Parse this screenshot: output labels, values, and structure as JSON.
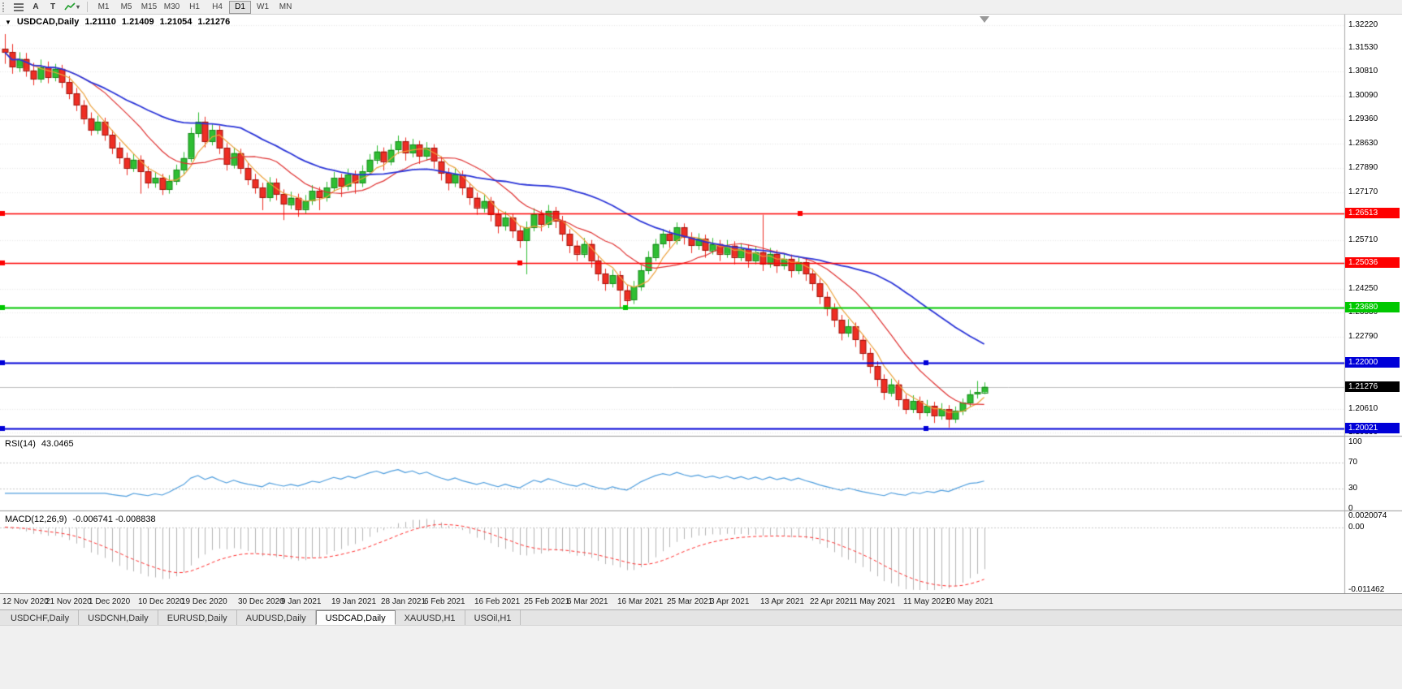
{
  "toolbar": {
    "icons": [
      {
        "name": "chart-list-icon",
        "glyph": ""
      },
      {
        "name": "autoscroll-icon",
        "glyph": "A"
      },
      {
        "name": "text-label-icon",
        "glyph": "T"
      },
      {
        "name": "indicators-icon",
        "glyph": "",
        "caret": "▾"
      }
    ],
    "timeframes": [
      "M1",
      "M5",
      "M15",
      "M30",
      "H1",
      "H4",
      "D1",
      "W1",
      "MN"
    ],
    "active_timeframe": "D1"
  },
  "chart": {
    "menu_arrow": "▼",
    "title": "USDCAD,Daily",
    "ohlc": {
      "open": "1.21110",
      "high": "1.21409",
      "low": "1.21054",
      "close": "1.21276"
    },
    "scale_labels": [
      {
        "text": "1.32220",
        "price": 1.3222
      },
      {
        "text": "1.31530",
        "price": 1.3153
      },
      {
        "text": "1.30810",
        "price": 1.3081
      },
      {
        "text": "1.30090",
        "price": 1.3009
      },
      {
        "text": "1.29360",
        "price": 1.2936
      },
      {
        "text": "1.28630",
        "price": 1.2863
      },
      {
        "text": "1.27890",
        "price": 1.2789
      },
      {
        "text": "1.27170",
        "price": 1.2717
      },
      {
        "text": "1.25710",
        "price": 1.2571
      },
      {
        "text": "1.24250",
        "price": 1.2425
      },
      {
        "text": "1.23530",
        "price": 1.2353
      },
      {
        "text": "1.22790",
        "price": 1.2279
      },
      {
        "text": "1.20610",
        "price": 1.2061
      },
      {
        "text": "1.19890",
        "price": 1.1989
      }
    ],
    "badges": [
      {
        "text": "1.26513",
        "price": 1.26513,
        "color": "#fe0000"
      },
      {
        "text": "1.25036",
        "price": 1.25036,
        "color": "#fe0000"
      },
      {
        "text": "1.23680",
        "price": 1.2368,
        "color": "#00c800"
      },
      {
        "text": "1.22000",
        "price": 1.22,
        "color": "#0000d8"
      },
      {
        "text": "1.20021",
        "price": 1.20021,
        "color": "#0000d8"
      }
    ],
    "current_price_badge": {
      "text": "1.21276",
      "price": 1.21276,
      "bg": "#000000"
    },
    "level_lines": [
      {
        "price": 1.26513,
        "color": "#fe0000",
        "width": 1.4,
        "handles": [
          3,
          985
        ]
      },
      {
        "price": 1.25036,
        "color": "#fe0000",
        "width": 1.4,
        "handles": [
          3,
          640
        ]
      },
      {
        "price": 1.2368,
        "color": "#00c800",
        "width": 2,
        "handles": [
          3,
          770
        ]
      },
      {
        "price": 1.22,
        "color": "#0000d8",
        "width": 2,
        "handles": [
          3,
          1140
        ]
      },
      {
        "price": 1.20021,
        "color": "#0000d8",
        "width": 2,
        "handles": [
          3,
          1140
        ]
      }
    ],
    "colors": {
      "up": "#2fbe33",
      "up_border": "#168a1a",
      "down": "#ee2e24",
      "down_border": "#9e120b",
      "bid_line": "#c0c0c0",
      "grid": "#e7e7e7"
    }
  },
  "rsi": {
    "label": "RSI(14)",
    "value": "43.0465",
    "period": 14,
    "color": "#4f9ede",
    "levels": [
      70,
      30
    ],
    "scale": [
      {
        "text": "100",
        "v": 100
      },
      {
        "text": "70",
        "v": 70
      },
      {
        "text": "30",
        "v": 30
      },
      {
        "text": "0",
        "v": 0
      }
    ]
  },
  "macd": {
    "label": "MACD(12,26,9)",
    "value": "-0.006741 -0.008838",
    "params": [
      12,
      26,
      9
    ],
    "ylim": [
      -0.011462,
      0.0020074
    ],
    "hist_color": "#b4b4b4",
    "signal_color": "#ff2f2f",
    "scale": [
      {
        "text": "0.0020074",
        "v": 0.0020074
      },
      {
        "text": "0.00",
        "v": 0
      },
      {
        "text": "-0.011462",
        "v": -0.011462
      }
    ]
  },
  "date_axis": {
    "labels": [
      {
        "text": "12 Nov 2020",
        "i": 0
      },
      {
        "text": "21 Nov 2020",
        "i": 6
      },
      {
        "text": "1 Dec 2020",
        "i": 12
      },
      {
        "text": "10 Dec 2020",
        "i": 19
      },
      {
        "text": "19 Dec 2020",
        "i": 25
      },
      {
        "text": "30 Dec 2020",
        "i": 33
      },
      {
        "text": "9 Jan 2021",
        "i": 39
      },
      {
        "text": "19 Jan 2021",
        "i": 46
      },
      {
        "text": "28 Jan 2021",
        "i": 53
      },
      {
        "text": "6 Feb 2021",
        "i": 59
      },
      {
        "text": "16 Feb 2021",
        "i": 66
      },
      {
        "text": "25 Feb 2021",
        "i": 73
      },
      {
        "text": "6 Mar 2021",
        "i": 79
      },
      {
        "text": "16 Mar 2021",
        "i": 86
      },
      {
        "text": "25 Mar 2021",
        "i": 93
      },
      {
        "text": "3 Apr 2021",
        "i": 99
      },
      {
        "text": "13 Apr 2021",
        "i": 106
      },
      {
        "text": "22 Apr 2021",
        "i": 113
      },
      {
        "text": "1 May 2021",
        "i": 119
      },
      {
        "text": "11 May 2021",
        "i": 126
      },
      {
        "text": "20 May 2021",
        "i": 132
      }
    ]
  },
  "tabs": [
    {
      "label": "USDCHF,Daily"
    },
    {
      "label": "USDCNH,Daily"
    },
    {
      "label": "EURUSD,Daily"
    },
    {
      "label": "AUDUSD,Daily"
    },
    {
      "label": "USDCAD,Daily",
      "active": true
    },
    {
      "label": "XAUUSD,H1"
    },
    {
      "label": "USOil,H1"
    }
  ],
  "chart_data": {
    "type": "candlestick",
    "symbol": "USDCAD",
    "timeframe": "Daily",
    "ylim": [
      1.19792,
      1.3254
    ],
    "moving_averages": [
      {
        "name": "ma-fast",
        "period": 5,
        "color": "#eda23c"
      },
      {
        "name": "ma-medium",
        "period": 13,
        "color": "#e03232"
      },
      {
        "name": "ma-slow",
        "period": 34,
        "color": "#2b35d8"
      }
    ],
    "indicators": [
      {
        "name": "RSI",
        "period": 14,
        "last": 43.0465
      },
      {
        "name": "MACD",
        "params": [
          12,
          26,
          9
        ],
        "last": [
          -0.006741,
          -0.008838
        ]
      }
    ],
    "candles": [
      [
        1.315,
        1.3195,
        1.3105,
        1.314
      ],
      [
        1.314,
        1.3165,
        1.3075,
        1.3095
      ],
      [
        1.3095,
        1.314,
        1.308,
        1.312
      ],
      [
        1.312,
        1.3138,
        1.3066,
        1.3085
      ],
      [
        1.3085,
        1.3108,
        1.304,
        1.306
      ],
      [
        1.306,
        1.3118,
        1.3048,
        1.3095
      ],
      [
        1.3095,
        1.3112,
        1.3046,
        1.3065
      ],
      [
        1.3065,
        1.3105,
        1.3052,
        1.309
      ],
      [
        1.309,
        1.3102,
        1.3032,
        1.305
      ],
      [
        1.305,
        1.3068,
        1.2998,
        1.3015
      ],
      [
        1.3015,
        1.3032,
        1.2962,
        1.298
      ],
      [
        1.298,
        1.2995,
        1.2922,
        1.294
      ],
      [
        1.294,
        1.2958,
        1.2888,
        1.2905
      ],
      [
        1.2905,
        1.2948,
        1.2892,
        1.293
      ],
      [
        1.293,
        1.2942,
        1.2872,
        1.289
      ],
      [
        1.289,
        1.2905,
        1.2832,
        1.285
      ],
      [
        1.285,
        1.2868,
        1.2802,
        1.282
      ],
      [
        1.282,
        1.2836,
        1.2768,
        1.279
      ],
      [
        1.279,
        1.2833,
        1.2778,
        1.2815
      ],
      [
        1.2815,
        1.2828,
        1.2712,
        1.278
      ],
      [
        1.278,
        1.2795,
        1.2728,
        1.2745
      ],
      [
        1.2745,
        1.2778,
        1.273,
        1.276
      ],
      [
        1.276,
        1.2772,
        1.2708,
        1.2725
      ],
      [
        1.2725,
        1.2768,
        1.2712,
        1.275
      ],
      [
        1.275,
        1.28,
        1.2738,
        1.2785
      ],
      [
        1.2785,
        1.2838,
        1.277,
        1.282
      ],
      [
        1.282,
        1.2912,
        1.2808,
        1.2895
      ],
      [
        1.2895,
        1.2958,
        1.2882,
        1.293
      ],
      [
        1.293,
        1.2945,
        1.2852,
        1.287
      ],
      [
        1.287,
        1.2922,
        1.2858,
        1.2905
      ],
      [
        1.2905,
        1.2918,
        1.2832,
        1.285
      ],
      [
        1.285,
        1.2865,
        1.2782,
        1.28
      ],
      [
        1.28,
        1.2852,
        1.2788,
        1.2835
      ],
      [
        1.2835,
        1.2848,
        1.2772,
        1.279
      ],
      [
        1.279,
        1.2805,
        1.2738,
        1.2755
      ],
      [
        1.2755,
        1.2772,
        1.2712,
        1.273
      ],
      [
        1.273,
        1.2745,
        1.2662,
        1.27
      ],
      [
        1.27,
        1.2762,
        1.2688,
        1.2745
      ],
      [
        1.2745,
        1.2758,
        1.2692,
        1.271
      ],
      [
        1.271,
        1.2725,
        1.2632,
        1.268
      ],
      [
        1.268,
        1.2718,
        1.2665,
        1.27
      ],
      [
        1.27,
        1.2712,
        1.2642,
        1.2665
      ],
      [
        1.2665,
        1.2708,
        1.265,
        1.269
      ],
      [
        1.269,
        1.2738,
        1.2678,
        1.272
      ],
      [
        1.272,
        1.2732,
        1.2662,
        1.27
      ],
      [
        1.27,
        1.2748,
        1.2688,
        1.273
      ],
      [
        1.273,
        1.2778,
        1.2718,
        1.276
      ],
      [
        1.276,
        1.2772,
        1.2702,
        1.2735
      ],
      [
        1.2735,
        1.2788,
        1.2722,
        1.277
      ],
      [
        1.277,
        1.2782,
        1.2712,
        1.2745
      ],
      [
        1.2745,
        1.2798,
        1.2732,
        1.278
      ],
      [
        1.278,
        1.2832,
        1.2768,
        1.2815
      ],
      [
        1.2815,
        1.2858,
        1.2802,
        1.284
      ],
      [
        1.284,
        1.2852,
        1.2782,
        1.281
      ],
      [
        1.281,
        1.2862,
        1.2798,
        1.2845
      ],
      [
        1.2845,
        1.2888,
        1.2832,
        1.287
      ],
      [
        1.287,
        1.2882,
        1.2812,
        1.2835
      ],
      [
        1.2835,
        1.2878,
        1.2822,
        1.286
      ],
      [
        1.286,
        1.2872,
        1.2802,
        1.2825
      ],
      [
        1.2825,
        1.2868,
        1.2812,
        1.285
      ],
      [
        1.285,
        1.2862,
        1.2788,
        1.281
      ],
      [
        1.281,
        1.2825,
        1.2752,
        1.2775
      ],
      [
        1.2775,
        1.279,
        1.2722,
        1.2745
      ],
      [
        1.2745,
        1.2788,
        1.2732,
        1.277
      ],
      [
        1.277,
        1.2782,
        1.2708,
        1.273
      ],
      [
        1.273,
        1.2745,
        1.2678,
        1.27
      ],
      [
        1.27,
        1.2715,
        1.2648,
        1.267
      ],
      [
        1.267,
        1.2708,
        1.2655,
        1.269
      ],
      [
        1.269,
        1.2702,
        1.2628,
        1.265
      ],
      [
        1.265,
        1.2665,
        1.2592,
        1.2615
      ],
      [
        1.2615,
        1.2658,
        1.26,
        1.264
      ],
      [
        1.264,
        1.2652,
        1.2578,
        1.26
      ],
      [
        1.26,
        1.2615,
        1.2548,
        1.257
      ],
      [
        1.257,
        1.2628,
        1.2468,
        1.261
      ],
      [
        1.261,
        1.2668,
        1.2598,
        1.265
      ],
      [
        1.265,
        1.2662,
        1.2598,
        1.262
      ],
      [
        1.262,
        1.2678,
        1.2608,
        1.266
      ],
      [
        1.266,
        1.2672,
        1.2608,
        1.263
      ],
      [
        1.263,
        1.2645,
        1.2568,
        1.259
      ],
      [
        1.259,
        1.2605,
        1.2532,
        1.2555
      ],
      [
        1.2555,
        1.257,
        1.2508,
        1.253
      ],
      [
        1.253,
        1.2578,
        1.2518,
        1.256
      ],
      [
        1.256,
        1.2572,
        1.2488,
        1.251
      ],
      [
        1.251,
        1.2525,
        1.2448,
        1.247
      ],
      [
        1.247,
        1.2485,
        1.2418,
        1.244
      ],
      [
        1.244,
        1.2482,
        1.2428,
        1.2465
      ],
      [
        1.2465,
        1.2478,
        1.2365,
        1.242
      ],
      [
        1.242,
        1.2435,
        1.2368,
        1.239
      ],
      [
        1.239,
        1.2448,
        1.2378,
        1.243
      ],
      [
        1.243,
        1.2495,
        1.2418,
        1.248
      ],
      [
        1.248,
        1.2538,
        1.2468,
        1.252
      ],
      [
        1.252,
        1.2575,
        1.2508,
        1.256
      ],
      [
        1.256,
        1.2605,
        1.2548,
        1.259
      ],
      [
        1.259,
        1.2602,
        1.2548,
        1.257
      ],
      [
        1.257,
        1.2625,
        1.2558,
        1.261
      ],
      [
        1.261,
        1.2622,
        1.2558,
        1.258
      ],
      [
        1.258,
        1.2595,
        1.2532,
        1.2555
      ],
      [
        1.2555,
        1.2592,
        1.2542,
        1.2575
      ],
      [
        1.2575,
        1.2588,
        1.2518,
        1.254
      ],
      [
        1.254,
        1.2578,
        1.2528,
        1.256
      ],
      [
        1.256,
        1.2572,
        1.2508,
        1.253
      ],
      [
        1.253,
        1.2572,
        1.2518,
        1.2555
      ],
      [
        1.2555,
        1.2568,
        1.2498,
        1.252
      ],
      [
        1.252,
        1.2562,
        1.2508,
        1.2545
      ],
      [
        1.2545,
        1.2558,
        1.2488,
        1.251
      ],
      [
        1.251,
        1.2552,
        1.2498,
        1.2535
      ],
      [
        1.2535,
        1.2648,
        1.2478,
        1.25
      ],
      [
        1.25,
        1.2548,
        1.2488,
        1.253
      ],
      [
        1.253,
        1.2542,
        1.2472,
        1.2495
      ],
      [
        1.2495,
        1.2532,
        1.2482,
        1.2515
      ],
      [
        1.2515,
        1.2528,
        1.2458,
        1.248
      ],
      [
        1.248,
        1.2522,
        1.2468,
        1.2505
      ],
      [
        1.2505,
        1.2518,
        1.2448,
        1.247
      ],
      [
        1.247,
        1.2485,
        1.2418,
        1.244
      ],
      [
        1.244,
        1.2455,
        1.2378,
        1.24
      ],
      [
        1.24,
        1.2415,
        1.2342,
        1.2365
      ],
      [
        1.2365,
        1.238,
        1.2308,
        1.233
      ],
      [
        1.233,
        1.2345,
        1.2268,
        1.229
      ],
      [
        1.229,
        1.2332,
        1.2278,
        1.231
      ],
      [
        1.231,
        1.2322,
        1.2248,
        1.227
      ],
      [
        1.227,
        1.2285,
        1.2208,
        1.223
      ],
      [
        1.223,
        1.2245,
        1.2168,
        1.219
      ],
      [
        1.219,
        1.2205,
        1.2128,
        1.215
      ],
      [
        1.215,
        1.2165,
        1.2088,
        1.211
      ],
      [
        1.211,
        1.2152,
        1.2098,
        1.2135
      ],
      [
        1.2135,
        1.2148,
        1.2068,
        1.209
      ],
      [
        1.209,
        1.2105,
        1.2045,
        1.206
      ],
      [
        1.206,
        1.2102,
        1.2048,
        1.2085
      ],
      [
        1.2085,
        1.2098,
        1.2028,
        1.205
      ],
      [
        1.205,
        1.2088,
        1.2038,
        1.207
      ],
      [
        1.207,
        1.2082,
        1.2018,
        1.204
      ],
      [
        1.204,
        1.2078,
        1.2028,
        1.206
      ],
      [
        1.206,
        1.2072,
        1.2004,
        1.203
      ],
      [
        1.203,
        1.2068,
        1.2018,
        1.2055
      ],
      [
        1.2055,
        1.2092,
        1.2042,
        1.208
      ],
      [
        1.208,
        1.2118,
        1.2068,
        1.2105
      ],
      [
        1.2105,
        1.2145,
        1.2092,
        1.2111
      ],
      [
        1.2111,
        1.21409,
        1.21054,
        1.21276
      ]
    ]
  }
}
